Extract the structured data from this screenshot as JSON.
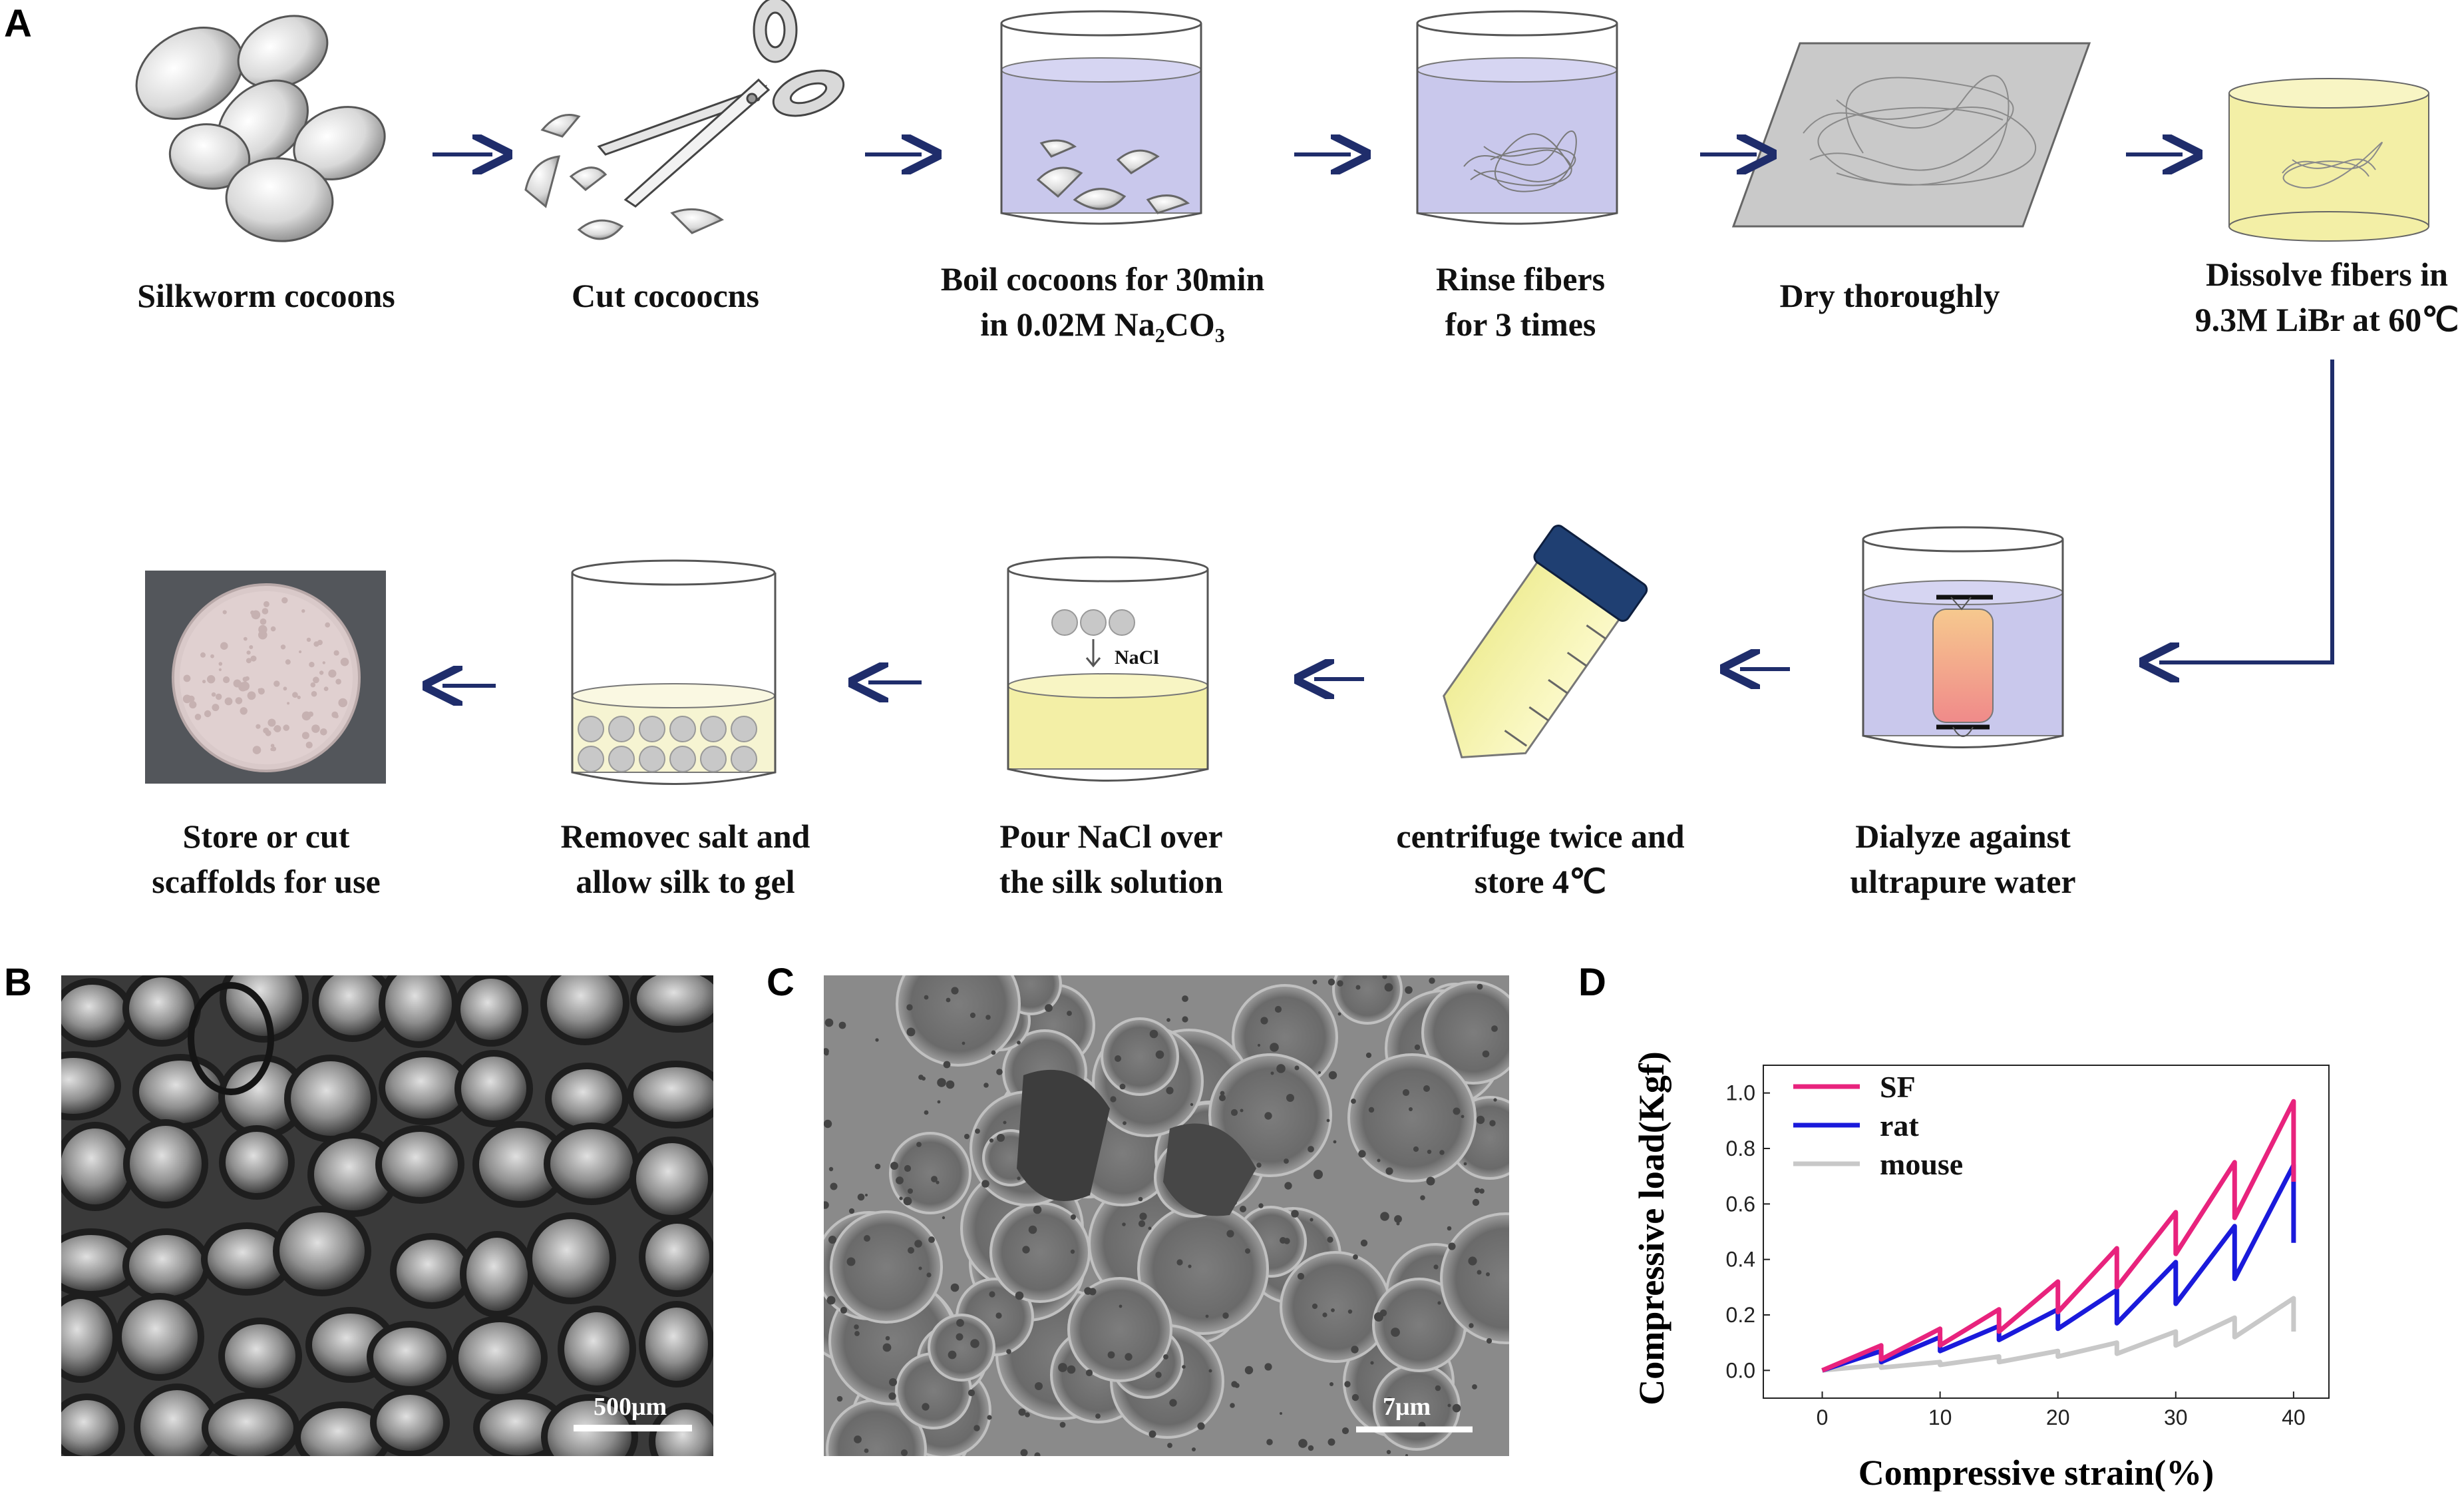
{
  "panels": {
    "a": "A",
    "b": "B",
    "c": "C",
    "d": "D"
  },
  "steps_row1": [
    {
      "line1": "Silkworm cocoons",
      "line2": ""
    },
    {
      "line1": "Cut cocoocns",
      "line2": ""
    },
    {
      "line1": "Boil cocoons for 30min",
      "line2": "in 0.02M Na₂CO₃"
    },
    {
      "line1": "Rinse fibers",
      "line2": "for 3 times"
    },
    {
      "line1": "Dry thoroughly",
      "line2": ""
    },
    {
      "line1": "Dissolve fibers in",
      "line2": "9.3M LiBr at 60℃"
    }
  ],
  "steps_row2": [
    {
      "line1": "Dialyze against",
      "line2": "ultrapure water"
    },
    {
      "line1": "centrifuge twice and",
      "line2": "store 4℃"
    },
    {
      "line1": "Pour NaCl  over",
      "line2": "the silk solution"
    },
    {
      "line1": "Removec salt and",
      "line2": "allow silk to gel"
    },
    {
      "line1": "Store or cut",
      "line2": "scaffolds for use"
    }
  ],
  "beaker_label": "NaCl",
  "scalebars": {
    "b": "500μm",
    "c": "7μm"
  },
  "colors": {
    "arrow": "#1f2d6b",
    "silk_solution": "#f3efa6",
    "water": "#c9c8ec",
    "sf": "#e8237d",
    "rat": "#1a1adb",
    "mouse": "#c8c8c8"
  },
  "chart_data": {
    "type": "line",
    "xlabel": "Compressive strain(%)",
    "ylabel": "Compressive load(Kgf)",
    "xlim": [
      -5,
      43
    ],
    "ylim": [
      -0.1,
      1.1
    ],
    "xticks": [
      0,
      10,
      20,
      30,
      40
    ],
    "yticks": [
      0.0,
      0.2,
      0.4,
      0.6,
      0.8,
      1.0
    ],
    "grid": false,
    "legend_position": "top-left",
    "series": [
      {
        "name": "SF",
        "color": "#e8237d",
        "x": [
          0,
          5,
          5,
          10,
          10,
          15,
          15,
          20,
          20,
          25,
          25,
          30,
          30,
          35,
          35,
          40,
          40
        ],
        "y": [
          0.0,
          0.09,
          0.04,
          0.15,
          0.09,
          0.22,
          0.14,
          0.32,
          0.21,
          0.44,
          0.3,
          0.57,
          0.42,
          0.75,
          0.55,
          0.97,
          0.68
        ]
      },
      {
        "name": "rat",
        "color": "#1a1adb",
        "x": [
          0,
          5,
          5,
          10,
          10,
          15,
          15,
          20,
          20,
          25,
          25,
          30,
          30,
          35,
          35,
          40,
          40
        ],
        "y": [
          0.0,
          0.07,
          0.03,
          0.12,
          0.07,
          0.16,
          0.11,
          0.22,
          0.15,
          0.29,
          0.17,
          0.39,
          0.24,
          0.52,
          0.33,
          0.74,
          0.46
        ]
      },
      {
        "name": "mouse",
        "color": "#c8c8c8",
        "x": [
          0,
          5,
          5,
          10,
          10,
          15,
          15,
          20,
          20,
          25,
          25,
          30,
          30,
          35,
          35,
          40,
          40
        ],
        "y": [
          0.0,
          0.02,
          0.01,
          0.03,
          0.02,
          0.05,
          0.03,
          0.07,
          0.05,
          0.1,
          0.06,
          0.14,
          0.09,
          0.19,
          0.12,
          0.26,
          0.14
        ]
      }
    ]
  }
}
